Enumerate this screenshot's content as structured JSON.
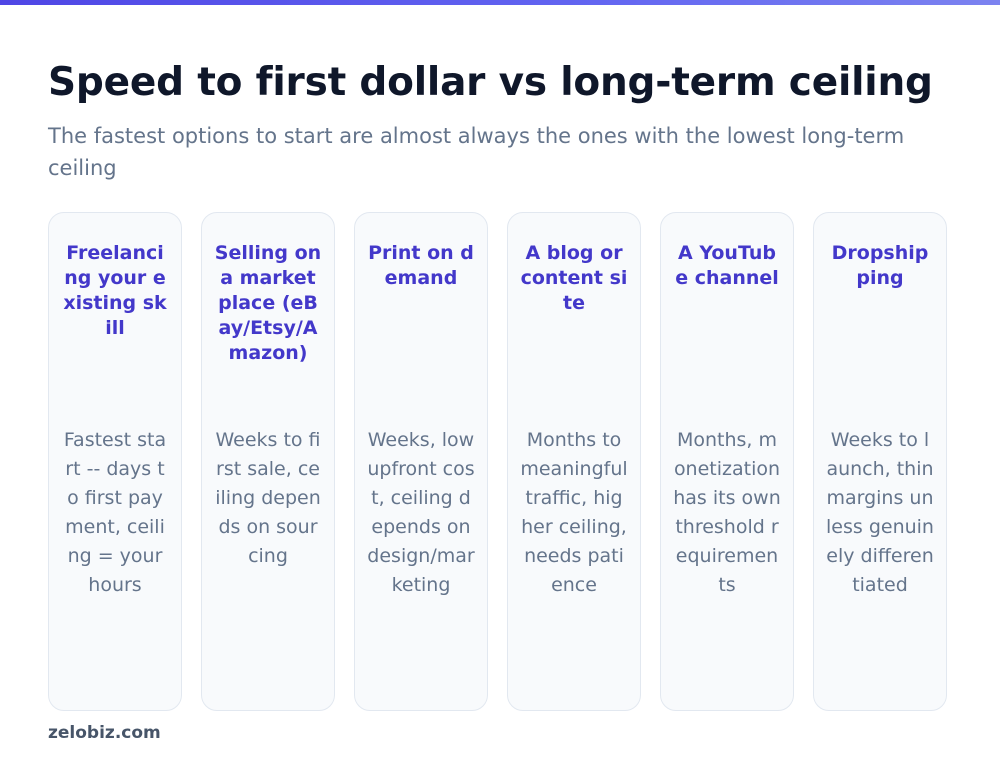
{
  "header": {
    "title": "Speed to first dollar vs long-term ceiling",
    "subtitle": "The fastest options to start are almost always the ones with the lowest long-term ceiling"
  },
  "cards": [
    {
      "title": "Freelancing your existing skill",
      "description": "Fastest start -- days to first payment, ceiling = your hours"
    },
    {
      "title": "Selling on a marketplace (eBay/Etsy/Amazon)",
      "description": "Weeks to first sale, ceiling depends on sourcing"
    },
    {
      "title": "Print on demand",
      "description": "Weeks, low upfront cost, ceiling depends on design/marketing"
    },
    {
      "title": "A blog or content site",
      "description": "Months to meaningful traffic, higher ceiling, needs patience"
    },
    {
      "title": "A YouTube channel",
      "description": "Months, monetization has its own threshold requirements"
    },
    {
      "title": "Dropshipping",
      "description": "Weeks to launch, thin margins unless genuinely differentiated"
    }
  ],
  "footer": {
    "brand": "zelobiz.com"
  },
  "colors": {
    "accent": "#4f46e5",
    "card_title": "#4338ca",
    "title": "#0f172a",
    "muted": "#64748b",
    "card_bg": "#f8fafc",
    "card_border": "#e2e8f0"
  }
}
